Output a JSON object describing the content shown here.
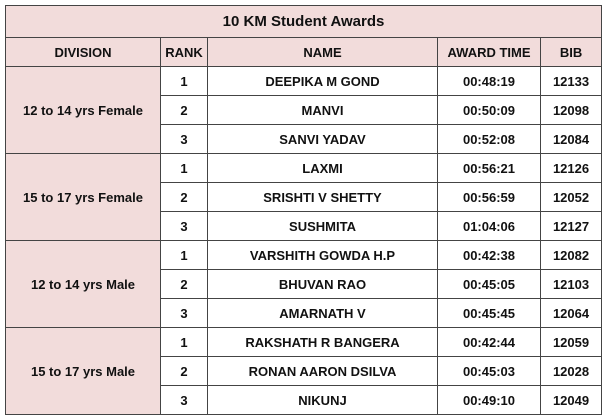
{
  "table": {
    "title": "10 KM Student Awards",
    "headers": [
      "DIVISION",
      "RANK",
      "NAME",
      "AWARD TIME",
      "BIB"
    ],
    "groups": [
      {
        "division": "12 to 14 yrs Female",
        "rows": [
          [
            1,
            "DEEPIKA M GOND",
            "00:48:19",
            12133
          ],
          [
            2,
            "MANVI",
            "00:50:09",
            12098
          ],
          [
            3,
            "SANVI YADAV",
            "00:52:08",
            12084
          ]
        ]
      },
      {
        "division": "15 to 17 yrs Female",
        "rows": [
          [
            1,
            "LAXMI",
            "00:56:21",
            12126
          ],
          [
            2,
            "SRISHTI V SHETTY",
            "00:56:59",
            12052
          ],
          [
            3,
            "SUSHMITA",
            "01:04:06",
            12127
          ]
        ]
      },
      {
        "division": "12 to 14 yrs Male",
        "rows": [
          [
            1,
            "VARSHITH GOWDA H.P",
            "00:42:38",
            12082
          ],
          [
            2,
            "BHUVAN RAO",
            "00:45:05",
            12103
          ],
          [
            3,
            "AMARNATH V",
            "00:45:45",
            12064
          ]
        ]
      },
      {
        "division": "15 to 17 yrs Male",
        "rows": [
          [
            1,
            "RAKSHATH R BANGERA",
            "00:42:44",
            12059
          ],
          [
            2,
            "RONAN AARON DSILVA",
            "00:45:03",
            12028
          ],
          [
            3,
            "NIKUNJ",
            "00:49:10",
            12049
          ]
        ]
      }
    ]
  }
}
